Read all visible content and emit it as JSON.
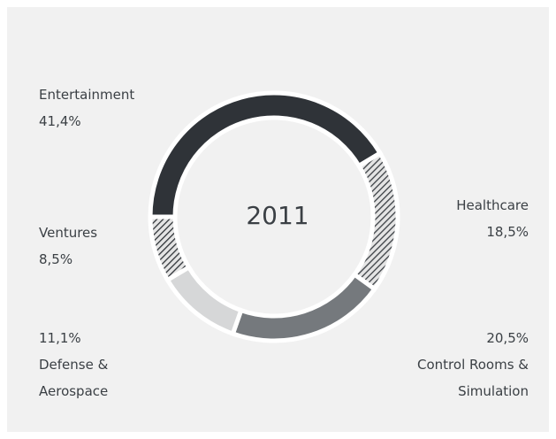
{
  "chart_data": {
    "type": "donut",
    "title": "2011",
    "categories": [
      "Entertainment",
      "Healthcare",
      "Control Rooms & Simulation",
      "Defense & Aerospace",
      "Ventures"
    ],
    "values": [
      41.4,
      18.5,
      20.5,
      11.1,
      8.5
    ],
    "value_labels": [
      "41,4%",
      "18,5%",
      "20,5%",
      "11,1%",
      "8,5%"
    ],
    "colors": [
      "#2f3338",
      "#3b3f44",
      "#75797d",
      "#d6d7d8",
      "#2f3338"
    ],
    "hatch": [
      false,
      true,
      false,
      false,
      true
    ]
  }
}
